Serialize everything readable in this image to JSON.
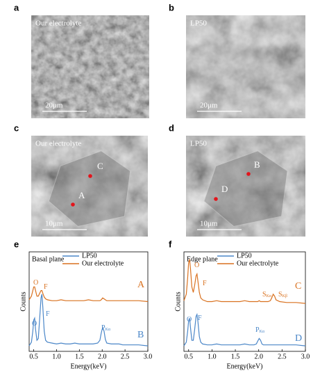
{
  "panels": [
    {
      "label": "a",
      "caption": "Our electrolyte",
      "scale_bar": "20μm",
      "points": []
    },
    {
      "label": "b",
      "caption": "LP50",
      "scale_bar": "20μm",
      "points": []
    },
    {
      "label": "c",
      "caption": "Our electrolyte",
      "scale_bar": "10μm",
      "points": [
        "C",
        "A"
      ]
    },
    {
      "label": "d",
      "caption": "LP50",
      "scale_bar": "10μm",
      "points": [
        "B",
        "D"
      ]
    }
  ],
  "chart_data": [
    {
      "type": "line",
      "label": "e",
      "title": "Basal plane",
      "xlabel": "Energy(keV)",
      "ylabel": "Counts",
      "xlim": [
        0.4,
        3.0
      ],
      "ylim": [
        0,
        108
      ],
      "xticks": [
        {
          "value": 0.5,
          "label": "0.5"
        },
        {
          "value": 1.0,
          "label": "1.0"
        },
        1.5,
        {
          "value": 2.0,
          "label": "2.0"
        },
        2.5,
        {
          "value": 3.0,
          "label": "3.0"
        }
      ],
      "x": [
        0.4,
        0.45,
        0.48,
        0.5,
        0.52,
        0.54,
        0.57,
        0.6,
        0.63,
        0.66,
        0.68,
        0.7,
        0.73,
        0.76,
        0.8,
        0.9,
        1.0,
        1.1,
        1.2,
        1.3,
        1.4,
        1.5,
        1.6,
        1.7,
        1.8,
        1.9,
        1.95,
        1.98,
        2.01,
        2.04,
        2.07,
        2.1,
        2.2,
        2.25,
        2.28,
        2.31,
        2.34,
        2.37,
        2.45,
        2.6,
        2.8,
        3.0
      ],
      "series": [
        {
          "name": "LP50",
          "color": "#4a86c8",
          "values": [
            6,
            10,
            22,
            34,
            36,
            24,
            12,
            14,
            35,
            58,
            62,
            48,
            22,
            12,
            10,
            9,
            8,
            9,
            8,
            8,
            9,
            8,
            8,
            8,
            8,
            9,
            12,
            20,
            26,
            22,
            13,
            9,
            8,
            8,
            8,
            8,
            8,
            8,
            7,
            7,
            7,
            6
          ]
        },
        {
          "name": "Our electrolyte",
          "color": "#d9711f",
          "values": [
            56,
            60,
            66,
            70,
            70,
            66,
            60,
            60,
            63,
            66,
            66,
            63,
            59,
            57,
            56,
            55,
            55,
            56,
            55,
            55,
            55,
            55,
            55,
            56,
            55,
            55,
            55,
            56,
            58,
            57,
            56,
            55,
            55,
            55,
            55,
            55,
            55,
            55,
            55,
            55,
            55,
            54
          ]
        }
      ],
      "annotations": [
        {
          "text": "O",
          "color": "#d9711f"
        },
        {
          "text": "F",
          "color": "#d9711f"
        },
        {
          "text": "A",
          "color": "#d9711f"
        },
        {
          "text": "O",
          "color": "#4a86c8"
        },
        {
          "text": "F",
          "color": "#4a86c8"
        },
        {
          "text": "P",
          "sub": "Kα",
          "color": "#4a86c8"
        },
        {
          "text": "B",
          "color": "#4a86c8"
        }
      ]
    },
    {
      "type": "line",
      "label": "f",
      "title": "Edge plane",
      "xlabel": "Energy(keV)",
      "ylabel": "Counts",
      "xlim": [
        0.4,
        3.0
      ],
      "ylim": [
        0,
        108
      ],
      "xticks": [
        {
          "value": 0.5,
          "label": "0.5"
        },
        {
          "value": 1.0,
          "label": "1.0"
        },
        1.5,
        {
          "value": 2.0,
          "label": "2.0"
        },
        2.5,
        {
          "value": 3.0,
          "label": "3.0"
        }
      ],
      "x": [
        0.4,
        0.45,
        0.48,
        0.5,
        0.52,
        0.54,
        0.57,
        0.6,
        0.63,
        0.66,
        0.68,
        0.7,
        0.73,
        0.76,
        0.8,
        0.9,
        1.0,
        1.1,
        1.2,
        1.3,
        1.4,
        1.5,
        1.6,
        1.7,
        1.8,
        1.9,
        1.95,
        1.98,
        2.01,
        2.04,
        2.07,
        2.1,
        2.2,
        2.25,
        2.28,
        2.31,
        2.34,
        2.37,
        2.45,
        2.6,
        2.8,
        3.0
      ],
      "series": [
        {
          "name": "LP50",
          "color": "#4a86c8",
          "values": [
            6,
            10,
            22,
            33,
            36,
            26,
            12,
            12,
            24,
            38,
            40,
            32,
            16,
            10,
            8,
            7,
            7,
            8,
            7,
            7,
            7,
            7,
            7,
            8,
            7,
            7,
            8,
            11,
            14,
            12,
            8,
            7,
            7,
            7,
            7,
            7,
            7,
            7,
            7,
            7,
            7,
            6
          ]
        },
        {
          "name": "Our electrolyte",
          "color": "#d9711f",
          "values": [
            55,
            62,
            80,
            96,
            100,
            90,
            70,
            64,
            72,
            82,
            84,
            76,
            64,
            58,
            56,
            54,
            54,
            55,
            54,
            54,
            54,
            54,
            54,
            55,
            54,
            54,
            54,
            54,
            55,
            54,
            54,
            54,
            54,
            55,
            58,
            62,
            60,
            56,
            54,
            53,
            53,
            52
          ]
        }
      ],
      "annotations": [
        {
          "text": "O",
          "color": "#d9711f"
        },
        {
          "text": "F",
          "color": "#d9711f"
        },
        {
          "text": "S",
          "sub": "Kα",
          "color": "#d9711f"
        },
        {
          "text": "S",
          "sub": "Kβ",
          "color": "#d9711f"
        },
        {
          "text": "C",
          "color": "#d9711f"
        },
        {
          "text": "O",
          "color": "#4a86c8"
        },
        {
          "text": "F",
          "color": "#4a86c8"
        },
        {
          "text": "P",
          "sub": "Kα",
          "color": "#4a86c8"
        },
        {
          "text": "D",
          "color": "#4a86c8"
        }
      ]
    }
  ]
}
